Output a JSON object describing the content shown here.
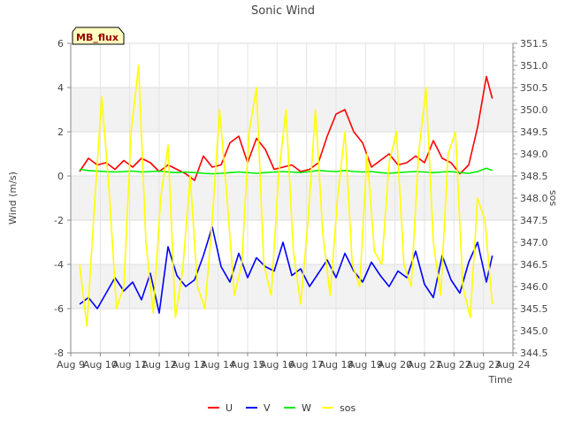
{
  "chart_data": {
    "type": "line",
    "title": "Sonic Wind",
    "badge": "MB_flux",
    "xlabel": "Time",
    "ylabel": "Wind (m/s)",
    "y2label": "sos",
    "xlim": [
      9,
      24
    ],
    "ylim": [
      -8,
      6
    ],
    "y2lim": [
      344.5,
      351.5
    ],
    "x_ticks": [
      {
        "v": 9,
        "label": "Aug 9"
      },
      {
        "v": 10,
        "label": "Aug 10"
      },
      {
        "v": 11,
        "label": "Aug 11"
      },
      {
        "v": 12,
        "label": "Aug 12"
      },
      {
        "v": 13,
        "label": "Aug 13"
      },
      {
        "v": 14,
        "label": "Aug 14"
      },
      {
        "v": 15,
        "label": "Aug 15"
      },
      {
        "v": 16,
        "label": "Aug 16"
      },
      {
        "v": 17,
        "label": "Aug 17"
      },
      {
        "v": 18,
        "label": "Aug 18"
      },
      {
        "v": 19,
        "label": "Aug 19"
      },
      {
        "v": 20,
        "label": "Aug 20"
      },
      {
        "v": 21,
        "label": "Aug 21"
      },
      {
        "v": 22,
        "label": "Aug 22"
      },
      {
        "v": 23,
        "label": "Aug 23"
      },
      {
        "v": 24,
        "label": "Aug 24"
      }
    ],
    "y_ticks": [
      -8,
      -6,
      -4,
      -2,
      0,
      2,
      4,
      6
    ],
    "y2_ticks": [
      "344.5",
      "345.0",
      "345.5",
      "346.0",
      "346.5",
      "347.0",
      "347.5",
      "348.0",
      "348.5",
      "349.0",
      "349.5",
      "350.0",
      "350.5",
      "351.0",
      "351.5"
    ],
    "colors": {
      "U": "#ff0000",
      "V": "#0000ff",
      "W": "#00ee00",
      "sos": "#ffff00"
    },
    "legend": [
      "U",
      "V",
      "W",
      "sos"
    ],
    "series": [
      {
        "name": "U",
        "axis": "left",
        "color": "#ff0000",
        "x": [
          9.3,
          9.6,
          9.9,
          10.2,
          10.5,
          10.8,
          11.1,
          11.4,
          11.7,
          12.0,
          12.3,
          12.6,
          12.9,
          13.2,
          13.5,
          13.8,
          14.1,
          14.4,
          14.7,
          15.0,
          15.3,
          15.6,
          15.9,
          16.2,
          16.5,
          16.8,
          17.1,
          17.4,
          17.7,
          18.0,
          18.3,
          18.6,
          18.9,
          19.2,
          19.5,
          19.8,
          20.1,
          20.4,
          20.7,
          21.0,
          21.3,
          21.6,
          21.9,
          22.2,
          22.5,
          22.8,
          23.1,
          23.3
        ],
        "values": [
          0.2,
          0.8,
          0.5,
          0.6,
          0.3,
          0.7,
          0.4,
          0.8,
          0.6,
          0.2,
          0.5,
          0.3,
          0.1,
          -0.2,
          0.9,
          0.4,
          0.5,
          1.5,
          1.8,
          0.6,
          1.7,
          1.2,
          0.3,
          0.4,
          0.5,
          0.2,
          0.3,
          0.6,
          1.8,
          2.8,
          3.0,
          2.0,
          1.5,
          0.4,
          0.7,
          1.0,
          0.5,
          0.6,
          0.9,
          0.6,
          1.6,
          0.8,
          0.6,
          0.1,
          0.5,
          2.2,
          4.5,
          3.5
        ]
      },
      {
        "name": "V",
        "axis": "left",
        "color": "#0000ff",
        "x": [
          9.3,
          9.6,
          9.9,
          10.2,
          10.5,
          10.8,
          11.1,
          11.4,
          11.7,
          12.0,
          12.3,
          12.6,
          12.9,
          13.2,
          13.5,
          13.8,
          14.1,
          14.4,
          14.7,
          15.0,
          15.3,
          15.6,
          15.9,
          16.2,
          16.5,
          16.8,
          17.1,
          17.4,
          17.7,
          18.0,
          18.3,
          18.6,
          18.9,
          19.2,
          19.5,
          19.8,
          20.1,
          20.4,
          20.7,
          21.0,
          21.3,
          21.6,
          21.9,
          22.2,
          22.5,
          22.8,
          23.1,
          23.3
        ],
        "values": [
          -5.8,
          -5.5,
          -6.0,
          -5.3,
          -4.6,
          -5.2,
          -4.8,
          -5.6,
          -4.4,
          -6.2,
          -3.2,
          -4.5,
          -5.0,
          -4.7,
          -3.6,
          -2.3,
          -4.1,
          -4.8,
          -3.5,
          -4.6,
          -3.7,
          -4.1,
          -4.3,
          -3.0,
          -4.5,
          -4.2,
          -5.0,
          -4.4,
          -3.8,
          -4.6,
          -3.5,
          -4.3,
          -4.8,
          -3.9,
          -4.5,
          -5.0,
          -4.3,
          -4.6,
          -3.4,
          -4.9,
          -5.5,
          -3.6,
          -4.7,
          -5.3,
          -3.9,
          -3.0,
          -4.8,
          -3.6
        ]
      },
      {
        "name": "W",
        "axis": "left",
        "color": "#00ee00",
        "x": [
          9.3,
          9.6,
          9.9,
          10.2,
          10.5,
          10.8,
          11.1,
          11.4,
          11.7,
          12.0,
          12.3,
          12.6,
          12.9,
          13.2,
          13.5,
          13.8,
          14.1,
          14.4,
          14.7,
          15.0,
          15.3,
          15.6,
          15.9,
          16.2,
          16.5,
          16.8,
          17.1,
          17.4,
          17.7,
          18.0,
          18.3,
          18.6,
          18.9,
          19.2,
          19.5,
          19.8,
          20.1,
          20.4,
          20.7,
          21.0,
          21.3,
          21.6,
          21.9,
          22.2,
          22.5,
          22.8,
          23.1,
          23.3
        ],
        "values": [
          0.3,
          0.25,
          0.22,
          0.2,
          0.18,
          0.2,
          0.22,
          0.18,
          0.2,
          0.22,
          0.18,
          0.15,
          0.18,
          0.15,
          0.12,
          0.1,
          0.12,
          0.15,
          0.18,
          0.15,
          0.12,
          0.15,
          0.18,
          0.2,
          0.18,
          0.15,
          0.2,
          0.25,
          0.22,
          0.2,
          0.25,
          0.2,
          0.18,
          0.2,
          0.15,
          0.12,
          0.15,
          0.18,
          0.2,
          0.18,
          0.15,
          0.18,
          0.2,
          0.15,
          0.12,
          0.2,
          0.35,
          0.25
        ]
      },
      {
        "name": "sos",
        "axis": "right",
        "color": "#ffff00",
        "x": [
          9.3,
          9.55,
          9.8,
          10.05,
          10.3,
          10.55,
          10.8,
          11.05,
          11.3,
          11.55,
          11.8,
          12.05,
          12.3,
          12.55,
          12.8,
          13.05,
          13.3,
          13.55,
          13.8,
          14.05,
          14.3,
          14.55,
          14.8,
          15.05,
          15.3,
          15.55,
          15.8,
          16.05,
          16.3,
          16.55,
          16.8,
          17.05,
          17.3,
          17.55,
          17.8,
          18.05,
          18.3,
          18.55,
          18.8,
          19.05,
          19.3,
          19.55,
          19.8,
          20.05,
          20.3,
          20.55,
          20.8,
          21.05,
          21.3,
          21.55,
          21.8,
          22.05,
          22.3,
          22.55,
          22.8,
          23.05,
          23.3
        ],
        "values": [
          346.5,
          345.1,
          347.8,
          350.3,
          348.2,
          345.5,
          346.0,
          349.5,
          351.0,
          347.0,
          345.4,
          348.0,
          349.2,
          345.3,
          346.4,
          348.5,
          346.0,
          345.5,
          347.5,
          350.0,
          348.0,
          345.8,
          346.5,
          349.5,
          350.5,
          346.5,
          345.8,
          348.5,
          350.0,
          346.8,
          345.6,
          347.5,
          350.0,
          347.2,
          345.8,
          348.0,
          349.5,
          346.5,
          346.0,
          349.0,
          346.8,
          346.5,
          348.8,
          349.5,
          346.5,
          346.0,
          349.0,
          350.5,
          347.0,
          345.8,
          349.0,
          349.5,
          346.0,
          345.3,
          348.0,
          347.5,
          345.6
        ]
      }
    ]
  }
}
